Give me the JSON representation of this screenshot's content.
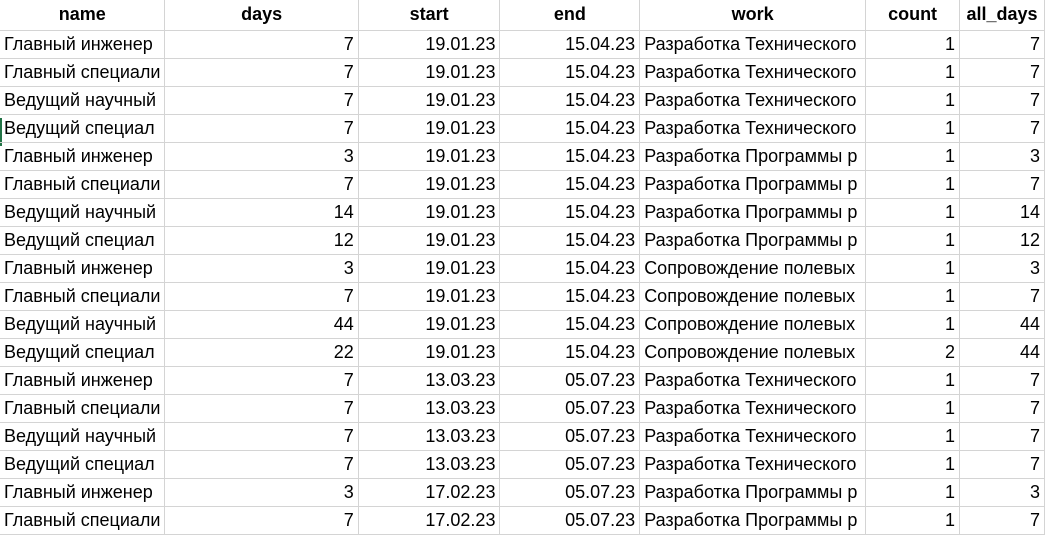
{
  "columns": [
    "name",
    "days",
    "start",
    "end",
    "work",
    "count",
    "all_days"
  ],
  "rows": [
    [
      "Главный инженер",
      "7",
      "19.01.23",
      "15.04.23",
      "Разработка Технического",
      "1",
      "7"
    ],
    [
      "Главный специали",
      "7",
      "19.01.23",
      "15.04.23",
      "Разработка Технического",
      "1",
      "7"
    ],
    [
      "Ведущий научный",
      "7",
      "19.01.23",
      "15.04.23",
      "Разработка Технического",
      "1",
      "7"
    ],
    [
      "Ведущий специал",
      "7",
      "19.01.23",
      "15.04.23",
      "Разработка Технического",
      "1",
      "7"
    ],
    [
      "Главный инженер",
      "3",
      "19.01.23",
      "15.04.23",
      "Разработка Программы р",
      "1",
      "3"
    ],
    [
      "Главный специали",
      "7",
      "19.01.23",
      "15.04.23",
      "Разработка Программы р",
      "1",
      "7"
    ],
    [
      "Ведущий научный",
      "14",
      "19.01.23",
      "15.04.23",
      "Разработка Программы р",
      "1",
      "14"
    ],
    [
      "Ведущий специал",
      "12",
      "19.01.23",
      "15.04.23",
      "Разработка Программы р",
      "1",
      "12"
    ],
    [
      "Главный инженер",
      "3",
      "19.01.23",
      "15.04.23",
      "Сопровождение полевых",
      "1",
      "3"
    ],
    [
      "Главный специали",
      "7",
      "19.01.23",
      "15.04.23",
      "Сопровождение полевых",
      "1",
      "7"
    ],
    [
      "Ведущий научный",
      "44",
      "19.01.23",
      "15.04.23",
      "Сопровождение полевых",
      "1",
      "44"
    ],
    [
      "Ведущий специал",
      "22",
      "19.01.23",
      "15.04.23",
      "Сопровождение полевых",
      "2",
      "44"
    ],
    [
      "Главный инженер",
      "7",
      "13.03.23",
      "05.07.23",
      "Разработка Технического",
      "1",
      "7"
    ],
    [
      "Главный специали",
      "7",
      "13.03.23",
      "05.07.23",
      "Разработка Технического",
      "1",
      "7"
    ],
    [
      "Ведущий научный",
      "7",
      "13.03.23",
      "05.07.23",
      "Разработка Технического",
      "1",
      "7"
    ],
    [
      "Ведущий специал",
      "7",
      "13.03.23",
      "05.07.23",
      "Разработка Технического",
      "1",
      "7"
    ],
    [
      "Главный инженер",
      "3",
      "17.02.23",
      "05.07.23",
      "Разработка Программы р",
      "1",
      "3"
    ],
    [
      "Главный специали",
      "7",
      "17.02.23",
      "05.07.23",
      "Разработка Программы р",
      "1",
      "7"
    ]
  ],
  "colors": {
    "gridline": "#d4d4d4",
    "selection": "#217346"
  }
}
